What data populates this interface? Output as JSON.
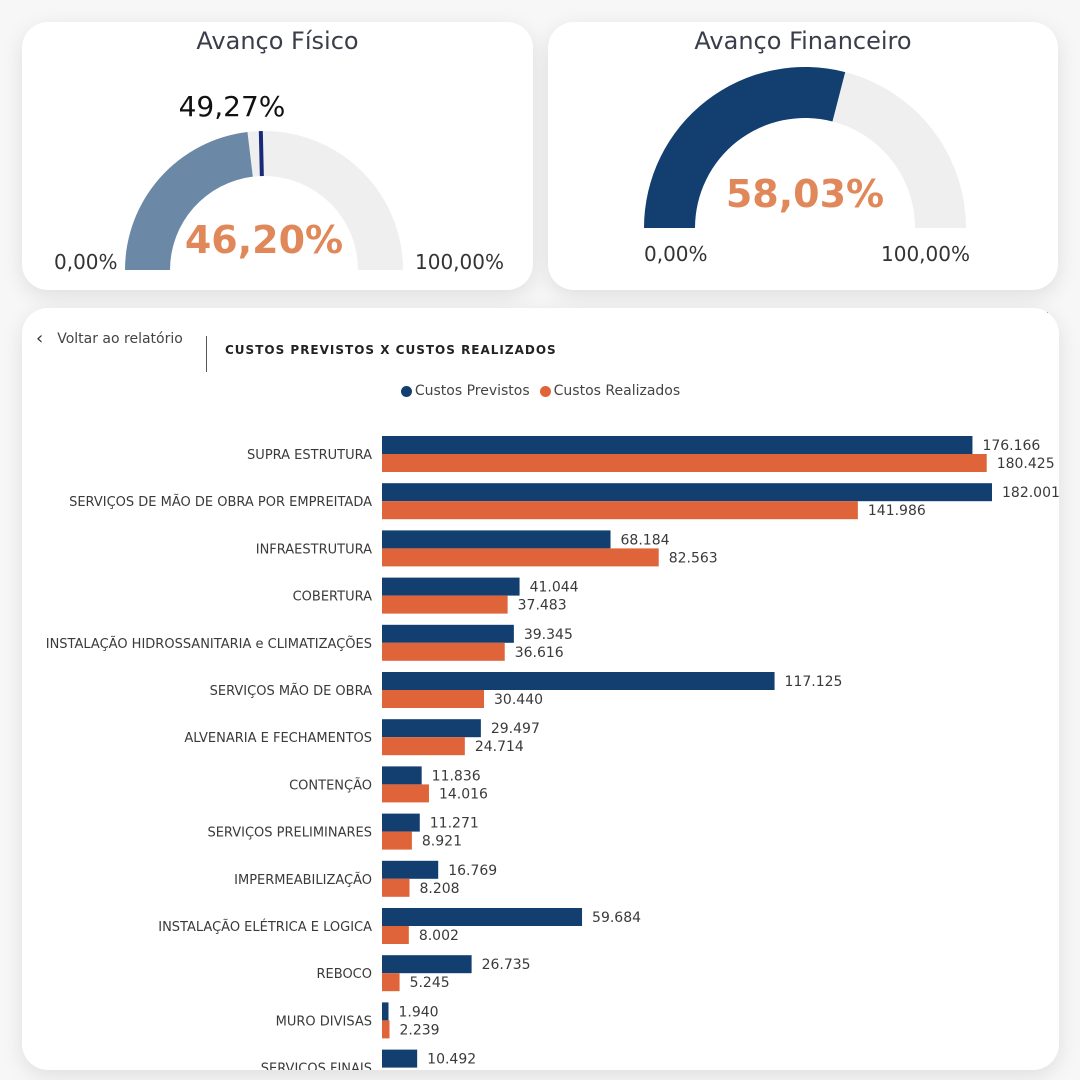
{
  "gauge_fisico": {
    "title": "Avanço Físico",
    "value": "46,20%",
    "target": "49,27%",
    "min_label": "0,00%",
    "max_label": "100,00%",
    "value_fraction": 0.462,
    "target_fraction": 0.4927,
    "fill_color": "#6b89a6",
    "target_color": "#1a2a7a"
  },
  "gauge_financeiro": {
    "title": "Avanço Financeiro",
    "value": "58,03%",
    "min_label": "0,00%",
    "max_label": "100,00%",
    "value_fraction": 0.5803,
    "fill_color": "#123f70"
  },
  "chart_header": {
    "back_label": "Voltar ao relatório",
    "title": "CUSTOS PREVISTOS X CUSTOS REALIZADOS"
  },
  "chart_data": {
    "type": "bar",
    "orientation": "horizontal",
    "title": "CUSTOS PREVISTOS X CUSTOS REALIZADOS",
    "categories": [
      "SUPRA ESTRUTURA",
      "SERVIÇOS DE MÃO DE OBRA POR EMPREITADA",
      "INFRAESTRUTURA",
      "COBERTURA",
      "INSTALAÇÃO HIDROSSANITARIA e CLIMATIZAÇÕES",
      "SERVIÇOS MÃO DE OBRA",
      "ALVENARIA E FECHAMENTOS",
      "CONTENÇÃO",
      "SERVIÇOS PRELIMINARES",
      "IMPERMEABILIZAÇÃO",
      "INSTALAÇÃO ELÉTRICA E LOGICA",
      "REBOCO",
      "MURO DIVISAS",
      "SERVIÇOS FINAIS"
    ],
    "series": [
      {
        "name": "Custos Previstos",
        "color": "#123f70",
        "values": [
          176166,
          182001,
          68184,
          41044,
          39345,
          117125,
          29497,
          11836,
          11271,
          16769,
          59684,
          26735,
          1940,
          10492
        ],
        "labels": [
          "176.166",
          "182.001",
          "68.184",
          "41.044",
          "39.345",
          "117.125",
          "29.497",
          "11.836",
          "11.271",
          "16.769",
          "59.684",
          "26.735",
          "1.940",
          "10.492"
        ]
      },
      {
        "name": "Custos Realizados",
        "color": "#e0643a",
        "values": [
          180425,
          141986,
          82563,
          37483,
          36616,
          30440,
          24714,
          14016,
          8921,
          8208,
          8002,
          5245,
          2239,
          null
        ],
        "labels": [
          "180.425",
          "141.986",
          "82.563",
          "37.483",
          "36.616",
          "30.440",
          "24.714",
          "14.016",
          "8.921",
          "8.208",
          "8.002",
          "5.245",
          "2.239",
          ""
        ]
      }
    ],
    "xlim": [
      0,
      182001
    ]
  }
}
